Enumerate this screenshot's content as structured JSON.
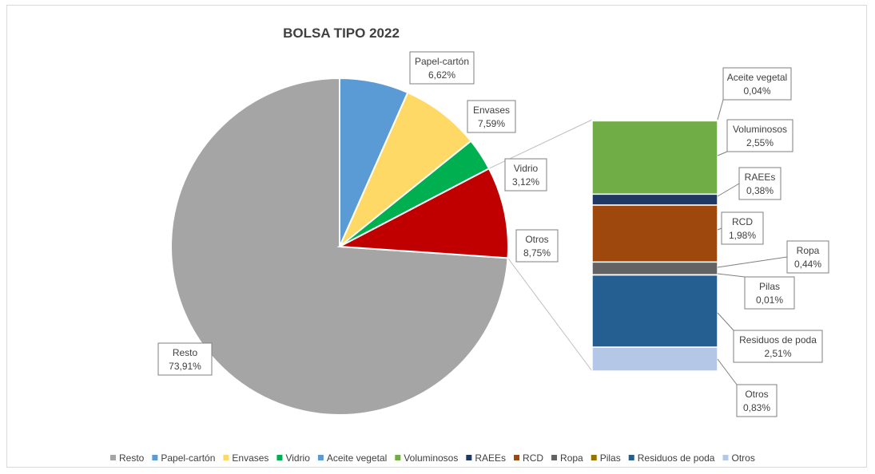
{
  "chart_data": {
    "type": "bar-of-pie",
    "title": "BOLSA TIPO 2022",
    "pie": [
      {
        "name": "Resto",
        "value": 73.91,
        "label": "73,91%",
        "color": "#a5a5a5"
      },
      {
        "name": "Papel-cartón",
        "value": 6.62,
        "label": "6,62%",
        "color": "#5b9bd5"
      },
      {
        "name": "Envases",
        "value": 7.59,
        "label": "7,59%",
        "color": "#ffd966"
      },
      {
        "name": "Vidrio",
        "value": 3.12,
        "label": "3,12%",
        "color": "#00b050"
      },
      {
        "name": "Otros",
        "value": 8.75,
        "label": "8,75%",
        "color": "#c00000"
      }
    ],
    "bar": [
      {
        "name": "Aceite vegetal",
        "value": 0.04,
        "label": "0,04%",
        "color": "#5b9bd5"
      },
      {
        "name": "Voluminosos",
        "value": 2.55,
        "label": "2,55%",
        "color": "#70ad47"
      },
      {
        "name": "RAEEs",
        "value": 0.38,
        "label": "0,38%",
        "color": "#203864"
      },
      {
        "name": "RCD",
        "value": 1.98,
        "label": "1,98%",
        "color": "#9e480e"
      },
      {
        "name": "Ropa",
        "value": 0.44,
        "label": "0,44%",
        "color": "#636363"
      },
      {
        "name": "Pilas",
        "value": 0.01,
        "label": "0,01%",
        "color": "#997300"
      },
      {
        "name": "Residuos de poda",
        "value": 2.51,
        "label": "2,51%",
        "color": "#255e91"
      },
      {
        "name": "Otros",
        "value": 0.83,
        "label": "0,83%",
        "color": "#b4c7e7"
      }
    ],
    "legend": [
      {
        "name": "Resto",
        "color": "#a5a5a5"
      },
      {
        "name": "Papel-cartón",
        "color": "#5b9bd5"
      },
      {
        "name": "Envases",
        "color": "#ffd966"
      },
      {
        "name": "Vidrio",
        "color": "#00b050"
      },
      {
        "name": "Aceite vegetal",
        "color": "#5b9bd5"
      },
      {
        "name": "Voluminosos",
        "color": "#70ad47"
      },
      {
        "name": "RAEEs",
        "color": "#203864"
      },
      {
        "name": "RCD",
        "color": "#9e480e"
      },
      {
        "name": "Ropa",
        "color": "#636363"
      },
      {
        "name": "Pilas",
        "color": "#997300"
      },
      {
        "name": "Residuos de poda",
        "color": "#255e91"
      },
      {
        "name": "Otros",
        "color": "#b4c7e7"
      }
    ],
    "legend_position": "bottom"
  }
}
